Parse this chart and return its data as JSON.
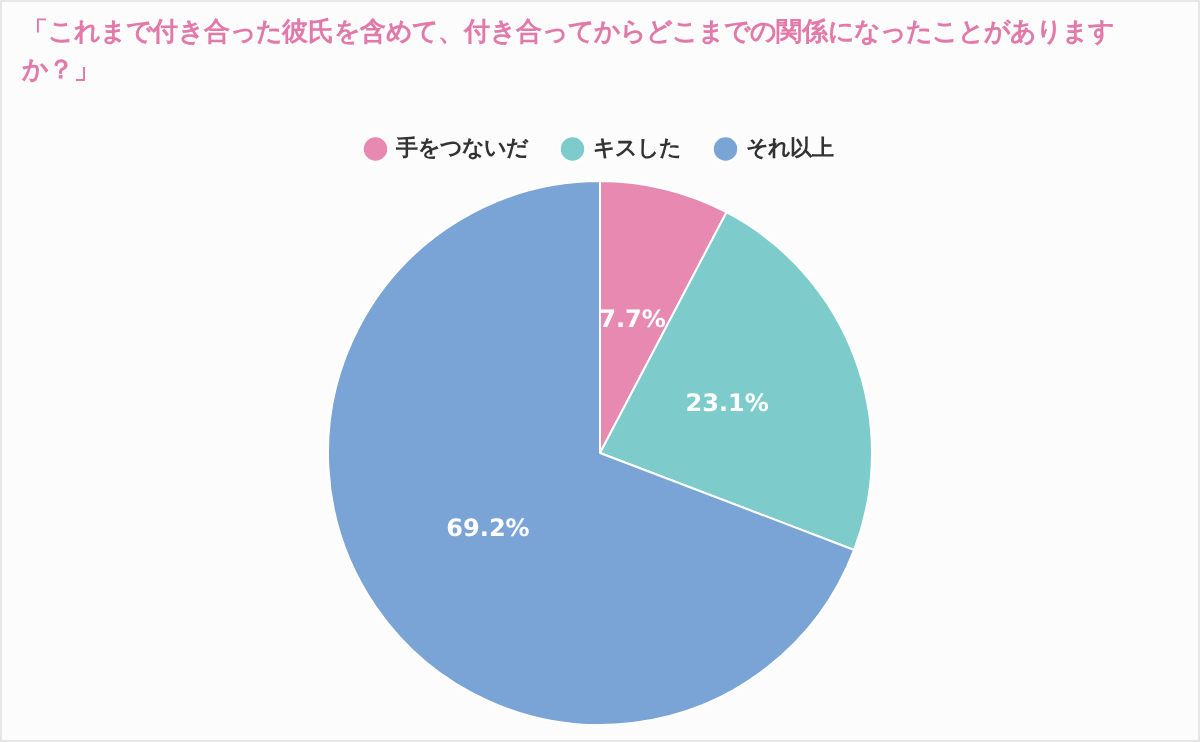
{
  "chart_data": {
    "type": "pie",
    "title": "「これまで付き合った彼氏を含めて、付き合ってからどこまでの関係になったことがありますか？」",
    "categories": [
      "手をつないだ",
      "キスした",
      "それ以上"
    ],
    "values": [
      7.7,
      23.1,
      69.2
    ],
    "value_labels": [
      "7.7%",
      "23.1%",
      "69.2%"
    ],
    "colors": [
      "#e889b2",
      "#7ecbcb",
      "#7aa3d6"
    ],
    "legend": "top"
  }
}
